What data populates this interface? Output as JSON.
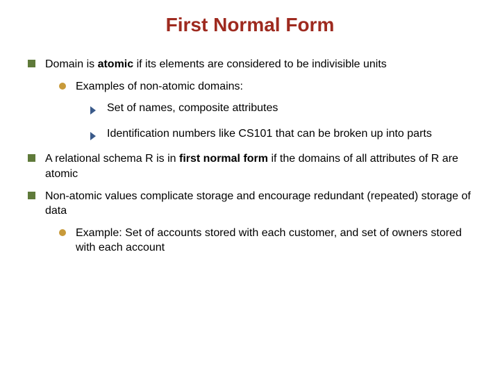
{
  "title": {
    "text": "First Normal Form",
    "color": "#9e2a1f",
    "fontsize": 28,
    "fontweight": "bold"
  },
  "colors": {
    "square_bullet": "#5f7a3a",
    "circle_bullet": "#c89a3a",
    "arrow_bullet": "#3a5a8a",
    "body_text": "#000000",
    "background": "#ffffff"
  },
  "body_fontsize": 16,
  "bullets": [
    {
      "level": 1,
      "html": "Domain is <b>atomic</b> if its elements are considered to be indivisible units"
    },
    {
      "level": 2,
      "html": "Examples of non-atomic domains:"
    },
    {
      "level": 3,
      "html": "Set of names, composite attributes"
    },
    {
      "level": 3,
      "html": "Identification numbers like CS101  that can be broken up into parts"
    },
    {
      "level": 1,
      "html": "A relational schema R is in <b>first normal form</b> if the domains of all attributes of R are atomic"
    },
    {
      "level": 1,
      "html": "Non-atomic values complicate storage and encourage redundant (repeated) storage of data"
    },
    {
      "level": 2,
      "html": "Example:  Set of accounts stored with each customer, and set of owners stored with each account"
    }
  ]
}
